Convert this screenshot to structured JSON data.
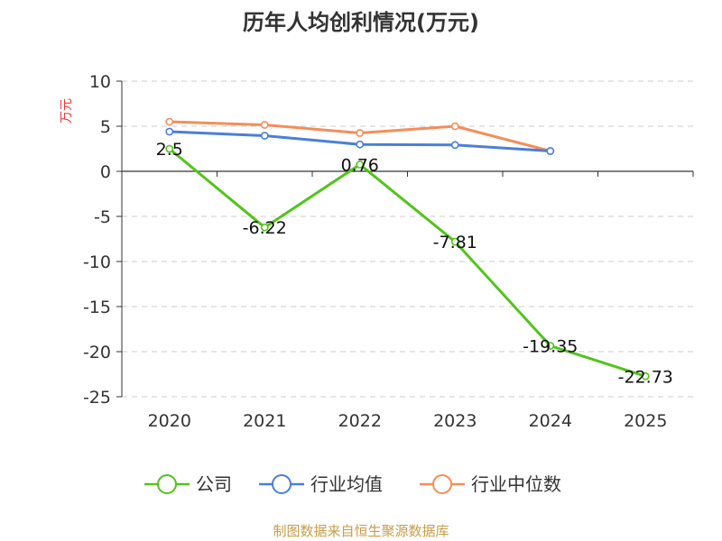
{
  "chart_data": {
    "type": "line",
    "title": "历年人均创利情况(万元)",
    "ylabel": "万元",
    "ylim": [
      -25,
      10
    ],
    "yticks": [
      10,
      5,
      0,
      -5,
      -10,
      -15,
      -20,
      -25
    ],
    "grid": true,
    "legend_position": "bottom",
    "categories": [
      "2020",
      "2021",
      "2022",
      "2023",
      "2024",
      "2025"
    ],
    "series": [
      {
        "name": "公司",
        "color": "#52c41a",
        "values": [
          2.5,
          -6.22,
          0.76,
          -7.81,
          -19.35,
          -22.73
        ],
        "labels": [
          "2.5",
          "-6.22",
          "0.76",
          "-7.81",
          "-19.35",
          "-22.73"
        ]
      },
      {
        "name": "行业均值",
        "color": "#4a7fd9",
        "values": [
          4.4,
          3.95,
          2.98,
          2.92,
          2.25,
          null
        ]
      },
      {
        "name": "行业中位数",
        "color": "#f58d5a",
        "values": [
          5.5,
          5.15,
          4.25,
          5.0,
          2.25,
          null
        ]
      }
    ]
  },
  "source": "制图数据来自恒生聚源数据库"
}
